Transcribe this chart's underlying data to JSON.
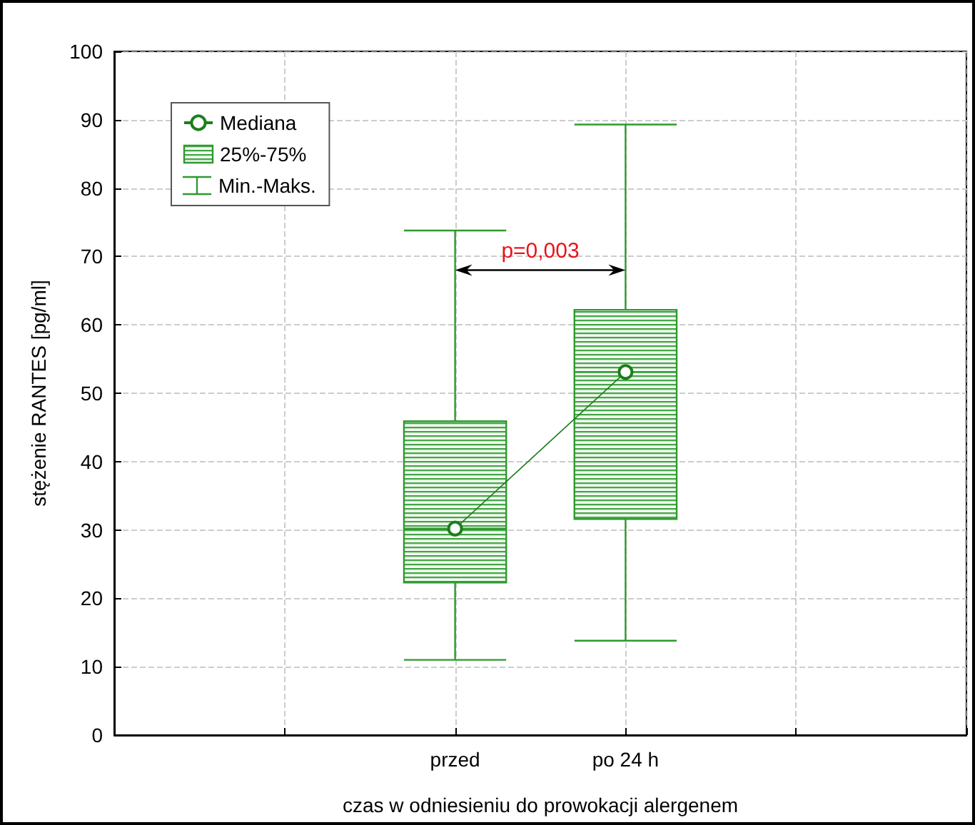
{
  "chart_data": {
    "type": "box",
    "xlabel": "czas w odniesieniu do prowokacji alergenem",
    "ylabel": "stężenie RANTES [pg/ml]",
    "categories": [
      null,
      null,
      "przed",
      "po 24 h",
      null,
      null
    ],
    "ylim": [
      0,
      100
    ],
    "yticks": [
      0,
      10,
      20,
      30,
      40,
      50,
      60,
      70,
      80,
      90,
      100
    ],
    "grid": true,
    "legend": "top left",
    "series": [
      {
        "name": "Mediana",
        "type": "line",
        "color": "#1a7f1a",
        "marker": "circle",
        "values": [
          null,
          null,
          30.2,
          53.1,
          null,
          null
        ]
      },
      {
        "name": "25%-75%",
        "type": "box",
        "color": "#2e9a2e",
        "boxes": [
          null,
          null,
          {
            "low": 11.0,
            "q1": 22.3,
            "median": 30.2,
            "q3": 45.9,
            "high": 73.8
          },
          {
            "low": 13.8,
            "q1": 31.6,
            "median": 53.1,
            "q3": 62.2,
            "high": 89.3
          },
          null,
          null
        ]
      }
    ],
    "annotations": [
      "p=0,003",
      "Min.-Maks."
    ]
  }
}
